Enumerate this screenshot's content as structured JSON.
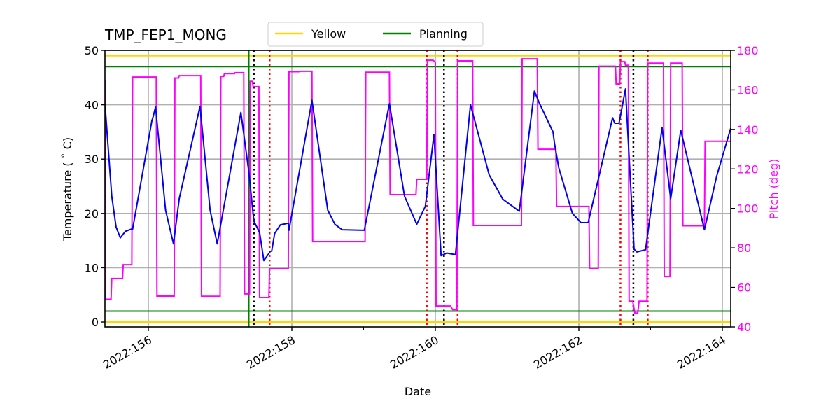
{
  "chart_data": {
    "type": "line",
    "title": "TMP_FEP1_MONG",
    "xlabel": "Date",
    "ylabel": "Temperature ($^\\circ$C)",
    "ylabel_display": "Temperature ( ˚ C)",
    "y2label": "Pitch (deg)",
    "xlim": [
      155.395,
      164.117
    ],
    "ylim": [
      -0.9,
      50
    ],
    "y2lim": [
      40,
      180
    ],
    "grid": true,
    "legend_position": "top-center",
    "x_ticks": [
      156,
      158,
      160,
      162,
      164
    ],
    "x_tick_labels": [
      "2022:156",
      "2022:158",
      "2022:160",
      "2022:162",
      "2022:164"
    ],
    "x_minor_ticks": [
      157,
      159,
      161,
      163
    ],
    "y_ticks": [
      0,
      10,
      20,
      30,
      40,
      50
    ],
    "y2_ticks": [
      40,
      60,
      80,
      100,
      120,
      140,
      160,
      180
    ],
    "legend": [
      {
        "name": "Yellow",
        "color": "#ffd700"
      },
      {
        "name": "Planning",
        "color": "#008000"
      }
    ],
    "limit_lines": [
      {
        "name": "Yellow",
        "value": 49,
        "color": "#ffd700"
      },
      {
        "name": "Yellow",
        "value": 0,
        "color": "#ffd700"
      },
      {
        "name": "Planning",
        "value": 47,
        "color": "#008000"
      },
      {
        "name": "Planning",
        "value": 2,
        "color": "#008000"
      }
    ],
    "vertical_lines": [
      {
        "x": 157.4,
        "style": "solid",
        "color": "#008000"
      },
      {
        "x": 157.47,
        "style": "dotted",
        "color": "#000000"
      },
      {
        "x": 160.12,
        "style": "dotted",
        "color": "#000000"
      },
      {
        "x": 162.76,
        "style": "dotted",
        "color": "#000000"
      },
      {
        "x": 157.69,
        "style": "dotted",
        "color": "#ff0000"
      },
      {
        "x": 159.88,
        "style": "dotted",
        "color": "#ff0000"
      },
      {
        "x": 160.31,
        "style": "dotted",
        "color": "#ff0000"
      },
      {
        "x": 162.58,
        "style": "dotted",
        "color": "#ff0000"
      },
      {
        "x": 162.96,
        "style": "dotted",
        "color": "#ff0000"
      }
    ],
    "series": [
      {
        "name": "TMP_FEP1_MONG",
        "axis": "left",
        "color": "#0000ee",
        "points": [
          [
            155.395,
            40.2
          ],
          [
            155.49,
            23.2
          ],
          [
            155.55,
            17.5
          ],
          [
            155.61,
            15.5
          ],
          [
            155.68,
            16.7
          ],
          [
            155.76,
            17.1
          ],
          [
            155.78,
            17.1
          ],
          [
            156.05,
            37.1
          ],
          [
            156.06,
            37.5
          ],
          [
            156.1,
            39.6
          ],
          [
            156.24,
            20.6
          ],
          [
            156.35,
            14.4
          ],
          [
            156.43,
            22.7
          ],
          [
            156.72,
            39.7
          ],
          [
            156.86,
            20.6
          ],
          [
            156.96,
            14.4
          ],
          [
            157.29,
            38.6
          ],
          [
            157.4,
            27.7
          ],
          [
            157.47,
            18.6
          ],
          [
            157.55,
            16.5
          ],
          [
            157.61,
            11.3
          ],
          [
            157.7,
            13.0
          ],
          [
            157.72,
            13.1
          ],
          [
            157.76,
            16.3
          ],
          [
            157.84,
            17.9
          ],
          [
            157.95,
            18.2
          ],
          [
            157.96,
            16.9
          ],
          [
            158.28,
            40.8
          ],
          [
            158.5,
            20.6
          ],
          [
            158.6,
            18.0
          ],
          [
            158.7,
            17.0
          ],
          [
            159.01,
            16.9
          ],
          [
            159.36,
            40.2
          ],
          [
            159.57,
            23.2
          ],
          [
            159.74,
            18.0
          ],
          [
            159.86,
            21.3
          ],
          [
            159.98,
            34.5
          ],
          [
            160.08,
            12.2
          ],
          [
            160.16,
            12.7
          ],
          [
            160.28,
            12.4
          ],
          [
            160.49,
            40.0
          ],
          [
            160.75,
            27.1
          ],
          [
            160.94,
            22.6
          ],
          [
            161.17,
            20.4
          ],
          [
            161.38,
            42.5
          ],
          [
            161.45,
            40.3
          ],
          [
            161.64,
            35.0
          ],
          [
            161.66,
            32.9
          ],
          [
            161.72,
            28.4
          ],
          [
            161.91,
            20.0
          ],
          [
            162.03,
            18.3
          ],
          [
            162.13,
            18.3
          ],
          [
            162.47,
            37.6
          ],
          [
            162.5,
            36.6
          ],
          [
            162.56,
            36.6
          ],
          [
            162.65,
            42.9
          ],
          [
            162.77,
            13.4
          ],
          [
            162.81,
            12.9
          ],
          [
            162.93,
            13.3
          ],
          [
            163.16,
            35.8
          ],
          [
            163.28,
            22.7
          ],
          [
            163.42,
            35.3
          ],
          [
            163.75,
            17.0
          ],
          [
            163.92,
            26.8
          ],
          [
            164.117,
            35.7
          ]
        ]
      },
      {
        "name": "Pitch",
        "axis": "right",
        "color": "#ff00ff",
        "points": [
          [
            155.395,
            165.0
          ],
          [
            155.4,
            54.0
          ],
          [
            155.48,
            54.0
          ],
          [
            155.49,
            64.5
          ],
          [
            155.64,
            64.5
          ],
          [
            155.65,
            71.5
          ],
          [
            155.77,
            71.5
          ],
          [
            155.78,
            166.5
          ],
          [
            156.11,
            166.5
          ],
          [
            156.12,
            55.6
          ],
          [
            156.36,
            55.6
          ],
          [
            156.37,
            166.0
          ],
          [
            156.42,
            166.0
          ],
          [
            156.43,
            167.2
          ],
          [
            156.73,
            167.2
          ],
          [
            156.74,
            55.5
          ],
          [
            157.0,
            55.5
          ],
          [
            157.01,
            166.8
          ],
          [
            157.05,
            166.8
          ],
          [
            157.06,
            168.2
          ],
          [
            157.2,
            168.2
          ],
          [
            157.21,
            168.7
          ],
          [
            157.33,
            168.7
          ],
          [
            157.34,
            56.7
          ],
          [
            157.41,
            56.7
          ],
          [
            157.42,
            164.3
          ],
          [
            157.45,
            164.3
          ],
          [
            157.46,
            161.6
          ],
          [
            157.54,
            161.6
          ],
          [
            157.55,
            54.9
          ],
          [
            157.68,
            54.9
          ],
          [
            157.69,
            69.4
          ],
          [
            157.95,
            69.4
          ],
          [
            157.96,
            169.2
          ],
          [
            158.1,
            169.2
          ],
          [
            158.12,
            169.4
          ],
          [
            158.28,
            169.4
          ],
          [
            158.29,
            83.2
          ],
          [
            159.02,
            83.2
          ],
          [
            159.03,
            168.9
          ],
          [
            159.36,
            168.9
          ],
          [
            159.37,
            107.0
          ],
          [
            159.73,
            107.0
          ],
          [
            159.74,
            114.8
          ],
          [
            159.88,
            114.8
          ],
          [
            159.89,
            175.0
          ],
          [
            159.97,
            175.0
          ],
          [
            160.0,
            173.8
          ],
          [
            160.01,
            50.6
          ],
          [
            160.21,
            50.6
          ],
          [
            160.24,
            48.8
          ],
          [
            160.3,
            48.8
          ],
          [
            160.31,
            174.7
          ],
          [
            160.52,
            174.7
          ],
          [
            160.53,
            91.4
          ],
          [
            161.2,
            91.4
          ],
          [
            161.21,
            175.7
          ],
          [
            161.42,
            175.7
          ],
          [
            161.43,
            130.0
          ],
          [
            161.68,
            130.0
          ],
          [
            161.69,
            101.0
          ],
          [
            162.14,
            101.0
          ],
          [
            162.15,
            69.4
          ],
          [
            162.27,
            69.4
          ],
          [
            162.28,
            172.0
          ],
          [
            162.51,
            172.0
          ],
          [
            162.52,
            163.0
          ],
          [
            162.57,
            163.0
          ],
          [
            162.58,
            174.3
          ],
          [
            162.64,
            174.3
          ],
          [
            162.65,
            172.5
          ],
          [
            162.69,
            172.5
          ],
          [
            162.7,
            53.0
          ],
          [
            162.75,
            53.0
          ],
          [
            162.78,
            47.0
          ],
          [
            162.82,
            47.0
          ],
          [
            162.84,
            53.0
          ],
          [
            162.95,
            53.0
          ],
          [
            162.96,
            173.5
          ],
          [
            163.18,
            173.5
          ],
          [
            163.19,
            65.5
          ],
          [
            163.27,
            65.5
          ],
          [
            163.28,
            173.5
          ],
          [
            163.44,
            173.5
          ],
          [
            163.45,
            91.2
          ],
          [
            163.75,
            91.2
          ],
          [
            163.76,
            134.0
          ],
          [
            164.117,
            134.0
          ]
        ]
      }
    ]
  }
}
